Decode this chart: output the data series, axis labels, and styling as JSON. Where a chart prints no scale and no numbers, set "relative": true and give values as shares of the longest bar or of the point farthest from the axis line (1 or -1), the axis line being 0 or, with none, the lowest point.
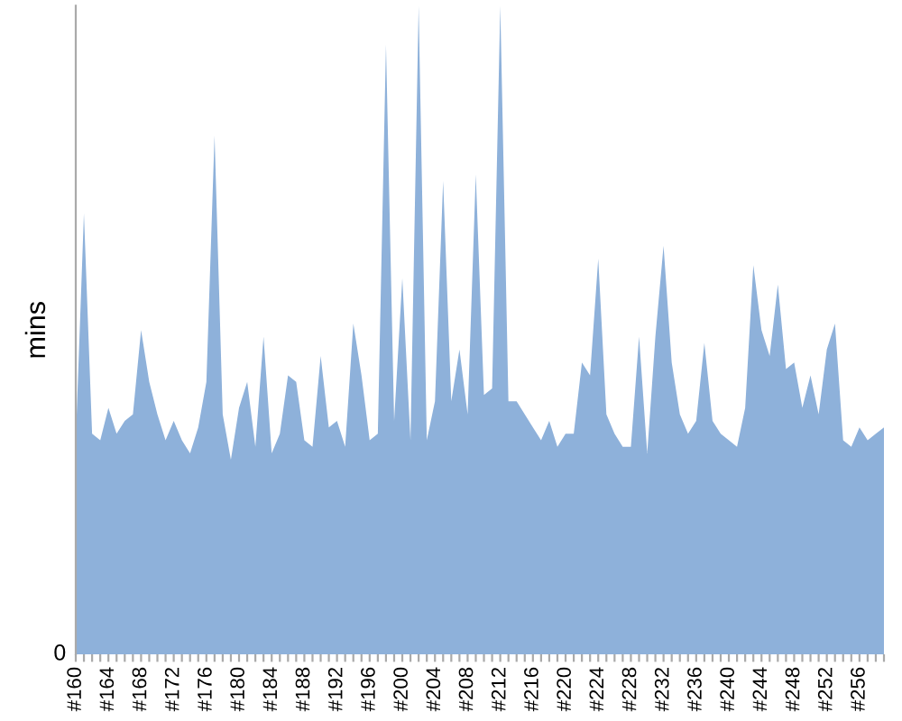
{
  "chart_data": {
    "type": "area",
    "relative": true,
    "ylabel": "mins",
    "color": "#8eb1da",
    "grid": false,
    "legend": false,
    "annotations": [
      "0"
    ],
    "categories": [
      "#160",
      null,
      null,
      null,
      "#164",
      null,
      null,
      null,
      "#168",
      null,
      null,
      null,
      "#172",
      null,
      null,
      null,
      "#176",
      null,
      null,
      null,
      "#180",
      null,
      null,
      null,
      "#184",
      null,
      null,
      null,
      "#188",
      null,
      null,
      null,
      "#192",
      null,
      null,
      null,
      "#196",
      null,
      null,
      null,
      "#200",
      null,
      null,
      null,
      "#204",
      null,
      null,
      null,
      "#208",
      null,
      null,
      null,
      "#212",
      null,
      null,
      null,
      "#216",
      null,
      null,
      null,
      "#220",
      null,
      null,
      null,
      "#224",
      null,
      null,
      null,
      "#228",
      null,
      null,
      null,
      "#232",
      null,
      null,
      null,
      "#236",
      null,
      null,
      null,
      "#240",
      null,
      null,
      null,
      "#244",
      null,
      null,
      null,
      "#248",
      null,
      null,
      null,
      "#252",
      null,
      null,
      null,
      "#256",
      null,
      null,
      null
    ],
    "values": [
      0.33,
      0.68,
      0.34,
      0.33,
      0.38,
      0.34,
      0.36,
      0.37,
      0.5,
      0.42,
      0.37,
      0.33,
      0.36,
      0.33,
      0.31,
      0.35,
      0.42,
      0.8,
      0.37,
      0.3,
      0.38,
      0.42,
      0.32,
      0.49,
      0.31,
      0.34,
      0.43,
      0.42,
      0.33,
      0.32,
      0.46,
      0.35,
      0.36,
      0.32,
      0.51,
      0.43,
      0.33,
      0.34,
      0.94,
      0.36,
      0.58,
      0.33,
      1,
      0.33,
      0.39,
      0.73,
      0.39,
      0.47,
      0.37,
      0.74,
      0.4,
      0.41,
      1,
      0.39,
      0.39,
      0.37,
      0.35,
      0.33,
      0.36,
      0.32,
      0.34,
      0.34,
      0.45,
      0.43,
      0.61,
      0.37,
      0.34,
      0.32,
      0.32,
      0.49,
      0.31,
      0.49,
      0.63,
      0.45,
      0.37,
      0.34,
      0.36,
      0.48,
      0.36,
      0.34,
      0.33,
      0.32,
      0.38,
      0.6,
      0.5,
      0.46,
      0.57,
      0.44,
      0.45,
      0.38,
      0.43,
      0.37,
      0.47,
      0.51,
      0.33,
      0.32,
      0.35,
      0.33,
      0.34,
      0.35
    ]
  }
}
